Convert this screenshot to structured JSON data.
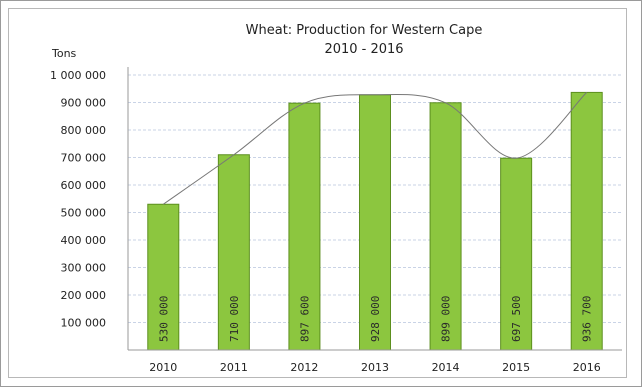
{
  "chart_data": {
    "type": "bar",
    "title": "Wheat: Production for Western Cape",
    "subtitle": "2010 - 2016",
    "ylabel": "Tons",
    "xlabel": "",
    "categories": [
      "2010",
      "2011",
      "2012",
      "2013",
      "2014",
      "2015",
      "2016"
    ],
    "values": [
      530000,
      710000,
      897600,
      928000,
      899000,
      697500,
      936700
    ],
    "data_labels": [
      "530 000",
      "710 000",
      "897 600",
      "928 000",
      "899 000",
      "697 500",
      "936 700"
    ],
    "yticks": [
      100000,
      200000,
      300000,
      400000,
      500000,
      600000,
      700000,
      800000,
      900000,
      1000000
    ],
    "ytick_labels": [
      "100 000",
      "200 000",
      "300 000",
      "400 000",
      "500 000",
      "600 000",
      "700 000",
      "800 000",
      "900 000",
      "1 000 000"
    ],
    "ylim": [
      0,
      1000000
    ],
    "grid": true,
    "trendline": true,
    "colors": {
      "bar_fill": "#8cc63f",
      "bar_stroke": "#5c8f1e",
      "grid": "#c9d3e6",
      "trend": "#777777"
    }
  }
}
